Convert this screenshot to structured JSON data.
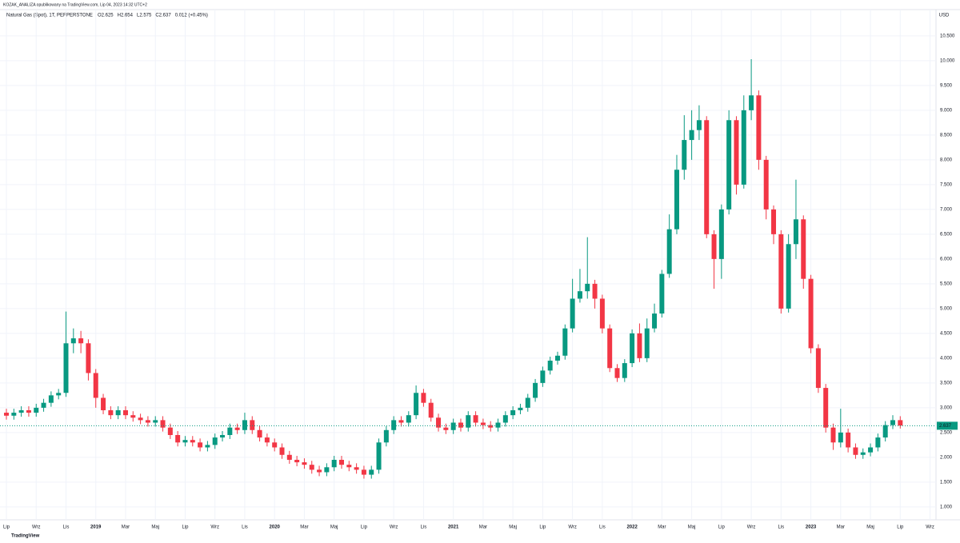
{
  "chart_data": {
    "type": "candlestick",
    "header": "KOZAK_ANALIZA opublikowany na TradingView.com, Lip 04, 2023 14:32 UTC+2",
    "title": "Natural Gas (Spot), 1T, PEPPERSTONE",
    "ohlc_legend": [
      "O2.625",
      "H2.654",
      "L2.575",
      "C2.637",
      "0.012 (+0.45%)"
    ],
    "currency": "USD",
    "watermark": "TradingView",
    "up_color": "#089981",
    "down_color": "#f23645",
    "grid": true,
    "last_price": 2.637,
    "x": [
      0,
      0.5,
      1,
      1.5,
      2,
      2.5,
      3,
      3.5,
      4,
      4.5,
      5,
      5.5,
      6,
      6.5,
      7,
      7.5,
      8,
      8.5,
      9,
      9.5,
      10,
      10.5,
      11,
      11.5,
      12,
      12.5,
      13,
      13.5,
      14,
      14.5,
      15,
      15.5,
      16,
      16.5,
      17,
      17.5,
      18,
      18.5,
      19,
      19.5,
      20,
      20.5,
      21,
      21.5,
      22,
      22.5,
      23,
      23.5,
      24,
      24.5,
      25,
      25.5,
      26,
      26.5,
      27,
      27.5,
      28,
      28.5,
      29,
      29.5,
      30,
      30.5,
      31,
      31.5,
      32,
      32.5,
      33,
      33.5,
      34,
      34.5,
      35,
      35.5,
      36,
      36.5,
      37,
      37.5,
      38,
      38.5,
      39,
      39.5,
      40,
      40.5,
      41,
      41.5,
      42,
      42.5,
      43,
      43.5,
      44,
      44.5,
      45,
      45.5,
      46,
      46.5,
      47,
      47.5,
      48,
      48.5,
      49,
      49.5,
      50,
      50.5,
      51,
      51.5,
      52,
      52.5,
      53,
      53.5,
      54,
      54.5,
      55,
      55.5,
      56,
      56.5,
      57,
      57.5,
      58,
      58.5,
      59,
      59.5,
      60
    ],
    "open": [
      2.9,
      2.84,
      2.9,
      2.95,
      2.9,
      3.0,
      3.1,
      3.25,
      3.3,
      4.3,
      4.4,
      4.3,
      3.7,
      3.2,
      2.95,
      2.85,
      2.95,
      2.85,
      2.8,
      2.75,
      2.7,
      2.75,
      2.6,
      2.45,
      2.3,
      2.35,
      2.3,
      2.2,
      2.25,
      2.4,
      2.45,
      2.6,
      2.55,
      2.75,
      2.55,
      2.4,
      2.3,
      2.2,
      2.05,
      1.95,
      1.9,
      1.85,
      1.75,
      1.7,
      1.8,
      1.95,
      1.85,
      1.8,
      1.75,
      1.65,
      1.75,
      2.3,
      2.55,
      2.75,
      2.7,
      2.85,
      3.3,
      3.1,
      2.8,
      2.6,
      2.55,
      2.7,
      2.6,
      2.85,
      2.7,
      2.65,
      2.6,
      2.7,
      2.85,
      2.95,
      3.0,
      3.2,
      3.5,
      3.75,
      3.95,
      4.05,
      4.6,
      5.2,
      5.35,
      5.5,
      5.2,
      4.6,
      3.8,
      3.6,
      3.9,
      4.5,
      4.0,
      4.6,
      4.9,
      5.7,
      6.6,
      7.8,
      8.4,
      8.6,
      8.8,
      6.5,
      6.0,
      7.0,
      8.8,
      7.5,
      9.0,
      9.3,
      8.0,
      7.0,
      6.5,
      5.0,
      6.3,
      6.8,
      5.6,
      4.2,
      3.4,
      2.6,
      2.3,
      2.5,
      2.2,
      2.05,
      2.1,
      2.2,
      2.4,
      2.65,
      2.75
    ],
    "high": [
      2.98,
      2.98,
      3.03,
      3.03,
      3.08,
      3.18,
      3.33,
      3.38,
      4.94,
      4.6,
      4.55,
      4.38,
      3.78,
      3.28,
      3.03,
      3.03,
      3.03,
      2.93,
      2.88,
      2.83,
      2.83,
      2.83,
      2.68,
      2.53,
      2.43,
      2.43,
      2.38,
      2.33,
      2.48,
      2.53,
      2.68,
      2.68,
      2.9,
      2.83,
      2.63,
      2.48,
      2.38,
      2.28,
      2.13,
      2.03,
      1.98,
      1.93,
      1.83,
      1.88,
      2.03,
      2.03,
      1.93,
      1.88,
      1.83,
      1.83,
      2.38,
      2.63,
      2.83,
      2.83,
      2.93,
      3.45,
      3.38,
      3.18,
      2.88,
      2.68,
      2.78,
      2.78,
      2.93,
      2.93,
      2.78,
      2.73,
      2.78,
      2.93,
      3.03,
      3.08,
      3.28,
      3.58,
      3.83,
      4.03,
      4.13,
      4.68,
      5.6,
      5.8,
      6.44,
      5.58,
      5.28,
      4.68,
      3.88,
      3.98,
      4.58,
      4.7,
      4.8,
      5.1,
      5.78,
      6.9,
      8.1,
      8.9,
      9.0,
      9.1,
      8.88,
      6.58,
      7.1,
      9.0,
      8.88,
      9.3,
      10.03,
      9.4,
      8.08,
      7.08,
      6.58,
      6.5,
      7.6,
      6.88,
      5.68,
      4.28,
      3.48,
      2.68,
      2.98,
      2.58,
      2.28,
      2.18,
      2.28,
      2.48,
      2.73,
      2.85,
      2.83
    ],
    "low": [
      2.76,
      2.76,
      2.82,
      2.82,
      2.82,
      2.92,
      3.02,
      3.17,
      3.22,
      4.1,
      4.1,
      3.55,
      3.0,
      2.87,
      2.77,
      2.77,
      2.77,
      2.72,
      2.67,
      2.62,
      2.62,
      2.52,
      2.37,
      2.22,
      2.22,
      2.22,
      2.12,
      2.12,
      2.17,
      2.32,
      2.37,
      2.47,
      2.47,
      2.47,
      2.32,
      2.22,
      2.12,
      1.97,
      1.87,
      1.82,
      1.77,
      1.67,
      1.62,
      1.62,
      1.72,
      1.77,
      1.72,
      1.67,
      1.57,
      1.57,
      1.67,
      2.22,
      2.47,
      2.62,
      2.62,
      2.77,
      3.02,
      2.72,
      2.52,
      2.47,
      2.47,
      2.52,
      2.52,
      2.62,
      2.57,
      2.52,
      2.52,
      2.62,
      2.77,
      2.87,
      2.92,
      3.12,
      3.42,
      3.67,
      3.87,
      3.97,
      4.52,
      5.12,
      5.2,
      5.0,
      4.5,
      3.72,
      3.52,
      3.52,
      3.82,
      3.92,
      3.92,
      4.52,
      4.82,
      5.62,
      6.5,
      7.6,
      8.0,
      8.4,
      6.42,
      5.4,
      5.6,
      6.9,
      7.3,
      7.42,
      8.8,
      7.8,
      6.8,
      6.3,
      4.9,
      4.92,
      6.0,
      5.4,
      4.1,
      3.3,
      2.5,
      2.15,
      2.2,
      2.1,
      1.97,
      1.97,
      2.02,
      2.12,
      2.32,
      2.57,
      2.58
    ],
    "close": [
      2.84,
      2.9,
      2.95,
      2.9,
      3.0,
      3.1,
      3.25,
      3.3,
      4.3,
      4.4,
      4.3,
      3.7,
      3.2,
      2.95,
      2.85,
      2.95,
      2.85,
      2.8,
      2.75,
      2.7,
      2.75,
      2.6,
      2.45,
      2.3,
      2.35,
      2.3,
      2.2,
      2.25,
      2.4,
      2.45,
      2.6,
      2.55,
      2.75,
      2.55,
      2.4,
      2.3,
      2.2,
      2.05,
      1.95,
      1.9,
      1.85,
      1.75,
      1.7,
      1.8,
      1.95,
      1.85,
      1.8,
      1.75,
      1.65,
      1.75,
      2.3,
      2.55,
      2.75,
      2.7,
      2.85,
      3.3,
      3.1,
      2.8,
      2.6,
      2.55,
      2.7,
      2.6,
      2.85,
      2.7,
      2.65,
      2.6,
      2.7,
      2.85,
      2.95,
      3.0,
      3.2,
      3.5,
      3.75,
      3.95,
      4.05,
      4.6,
      5.2,
      5.35,
      5.5,
      5.2,
      4.6,
      3.8,
      3.6,
      3.9,
      4.5,
      4.0,
      4.6,
      4.9,
      5.7,
      6.6,
      7.8,
      8.4,
      8.6,
      8.8,
      6.5,
      6.0,
      7.0,
      8.8,
      7.5,
      9.0,
      9.3,
      8.0,
      7.0,
      6.5,
      5.0,
      6.3,
      6.8,
      5.6,
      4.2,
      3.4,
      2.6,
      2.3,
      2.5,
      2.2,
      2.05,
      2.1,
      2.2,
      2.4,
      2.65,
      2.75,
      2.64
    ],
    "xlim": [
      -0.43,
      62.4
    ],
    "xticks": [
      {
        "value": 0,
        "label": "Lip"
      },
      {
        "value": 2,
        "label": "Wrz"
      },
      {
        "value": 4,
        "label": "Lis"
      },
      {
        "value": 6,
        "label": "2019"
      },
      {
        "value": 8,
        "label": "Mar"
      },
      {
        "value": 10,
        "label": "Maj"
      },
      {
        "value": 12,
        "label": "Lip"
      },
      {
        "value": 14,
        "label": "Wrz"
      },
      {
        "value": 16,
        "label": "Lis"
      },
      {
        "value": 18,
        "label": "2020"
      },
      {
        "value": 20,
        "label": "Mar"
      },
      {
        "value": 22,
        "label": "Maj"
      },
      {
        "value": 24,
        "label": "Lip"
      },
      {
        "value": 26,
        "label": "Wrz"
      },
      {
        "value": 28,
        "label": "Lis"
      },
      {
        "value": 30,
        "label": "2021"
      },
      {
        "value": 32,
        "label": "Mar"
      },
      {
        "value": 34,
        "label": "Maj"
      },
      {
        "value": 36,
        "label": "Lip"
      },
      {
        "value": 38,
        "label": "Wrz"
      },
      {
        "value": 40,
        "label": "Lis"
      },
      {
        "value": 42,
        "label": "2022"
      },
      {
        "value": 44,
        "label": "Mar"
      },
      {
        "value": 46,
        "label": "Maj"
      },
      {
        "value": 48,
        "label": "Lip"
      },
      {
        "value": 50,
        "label": "Wrz"
      },
      {
        "value": 52,
        "label": "Lis"
      },
      {
        "value": 54,
        "label": "2023"
      },
      {
        "value": 56,
        "label": "Mar"
      },
      {
        "value": 58,
        "label": "Maj"
      },
      {
        "value": 60,
        "label": "Lip"
      },
      {
        "value": 62,
        "label": "Wrz"
      }
    ],
    "ylim": [
      0.74,
      11.03
    ],
    "yticks": [
      {
        "value": 1,
        "label": "1.000"
      },
      {
        "value": 1.5,
        "label": "1.500"
      },
      {
        "value": 2,
        "label": "2.000"
      },
      {
        "value": 2.5,
        "label": "2.500"
      },
      {
        "value": 3,
        "label": "3.000"
      },
      {
        "value": 3.5,
        "label": "3.500"
      },
      {
        "value": 4,
        "label": "4.000"
      },
      {
        "value": 4.5,
        "label": "4.500"
      },
      {
        "value": 5,
        "label": "5.000"
      },
      {
        "value": 5.5,
        "label": "5.500"
      },
      {
        "value": 6,
        "label": "6.000"
      },
      {
        "value": 6.5,
        "label": "6.500"
      },
      {
        "value": 7,
        "label": "7.000"
      },
      {
        "value": 7.5,
        "label": "7.500"
      },
      {
        "value": 8,
        "label": "8.000"
      },
      {
        "value": 8.5,
        "label": "8.500"
      },
      {
        "value": 9,
        "label": "9.000"
      },
      {
        "value": 9.5,
        "label": "9.500"
      },
      {
        "value": 10,
        "label": "10.000"
      },
      {
        "value": 10.5,
        "label": "10.500"
      }
    ]
  }
}
